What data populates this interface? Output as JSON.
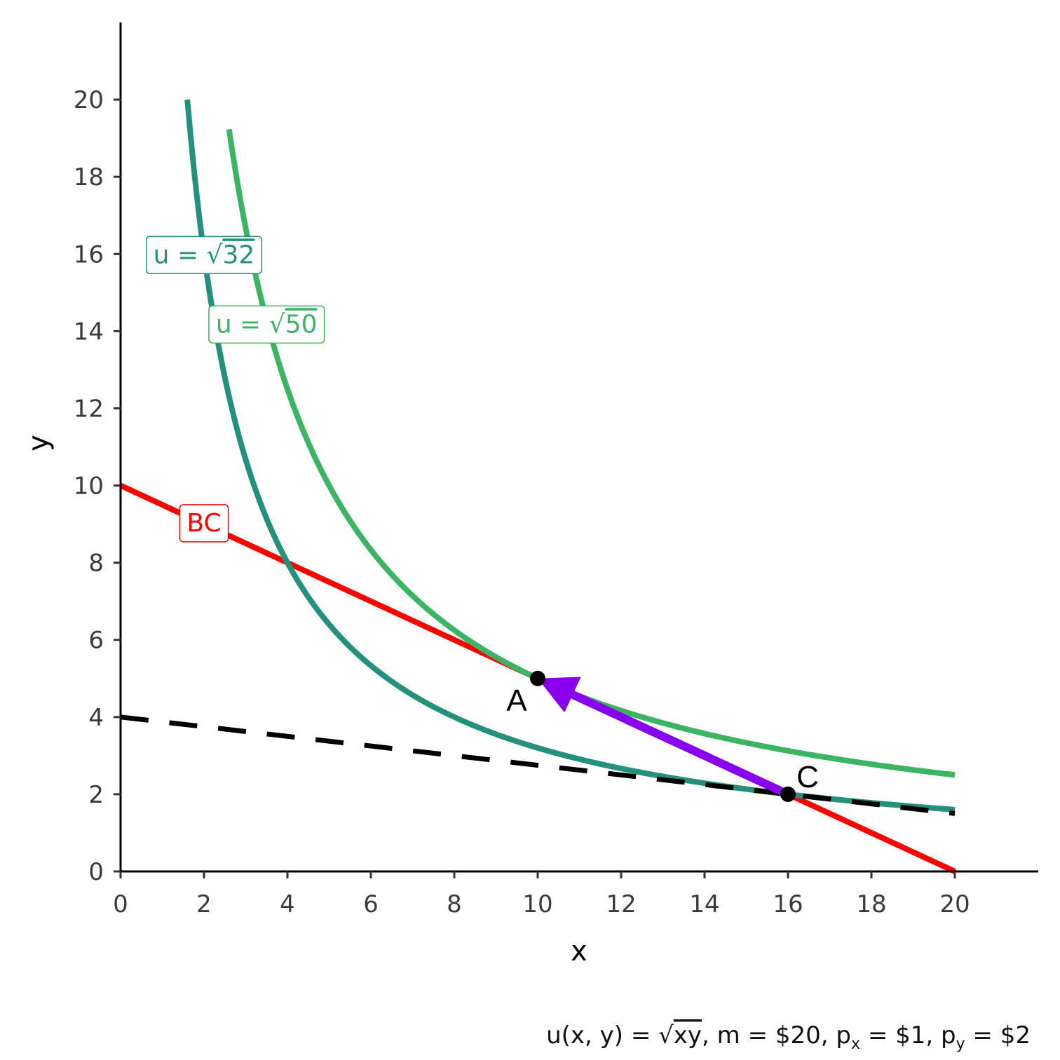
{
  "chart_data": {
    "type": "line",
    "title": "",
    "xlabel": "x",
    "ylabel": "y",
    "xlim": [
      0,
      22
    ],
    "ylim": [
      0,
      22
    ],
    "xticks": [
      0,
      2,
      4,
      6,
      8,
      10,
      12,
      14,
      16,
      18,
      20
    ],
    "yticks": [
      0,
      2,
      4,
      6,
      8,
      10,
      12,
      14,
      16,
      18,
      20
    ],
    "grid": false,
    "caption": "u(x, y) = √xy, m = $20, pₓ = $1, p_y = $2",
    "caption_parts": {
      "u": "u(x, y) = ",
      "sqrt": "√",
      "xy": "xy",
      "m": ", m = $20, p",
      "px_sub": "x",
      "px_val": " = $1, p",
      "py_sub": "y",
      "py_val": " = $2"
    },
    "series": [
      {
        "kind": "budget-line",
        "label": "BC",
        "color": "#ff0000",
        "x": [
          0,
          20
        ],
        "y": [
          10,
          0
        ]
      },
      {
        "kind": "indifference-curve",
        "label": "u = √32",
        "label_prefix": "u = ",
        "label_root": "√",
        "label_value": "32",
        "utility_squared": 32,
        "color": "#23917c",
        "x_range": [
          1.6,
          20
        ],
        "label_at": [
          2,
          16
        ]
      },
      {
        "kind": "indifference-curve",
        "label": "u = √50",
        "label_prefix": "u = ",
        "label_root": "√",
        "label_value": "50",
        "utility_squared": 50,
        "color": "#3bb463",
        "x_range": [
          2.6,
          20
        ],
        "label_at": [
          3.5,
          14.2
        ]
      },
      {
        "kind": "dashed-line",
        "color": "#000000",
        "x": [
          0,
          20
        ],
        "y": [
          4,
          1.5
        ]
      }
    ],
    "points": [
      {
        "label": "A",
        "x": 10,
        "y": 5,
        "label_position": "bottom-left"
      },
      {
        "label": "C",
        "x": 16,
        "y": 2,
        "label_position": "top-right"
      }
    ],
    "arrow": {
      "from": [
        16,
        2
      ],
      "to": [
        10,
        5
      ],
      "color": "#8800ee"
    }
  }
}
